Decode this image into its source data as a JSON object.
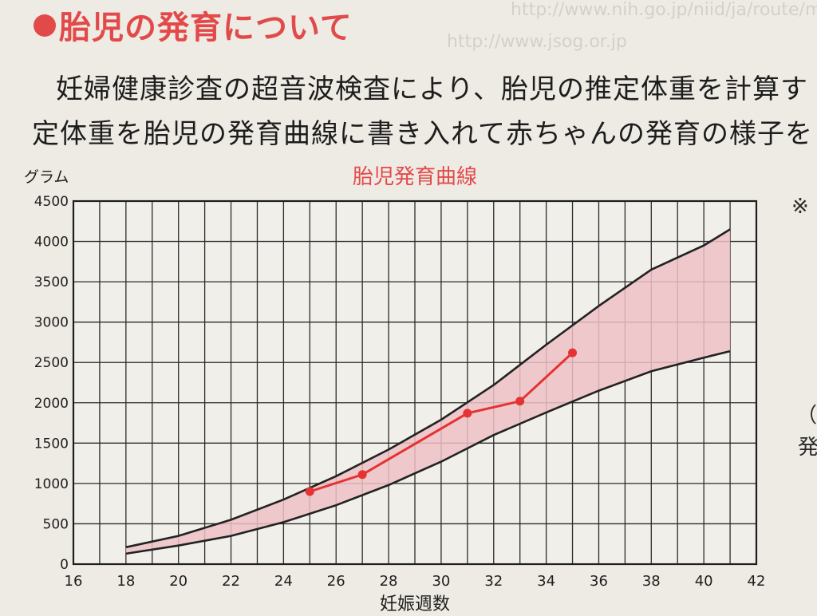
{
  "heading": "胎児の発育について",
  "paragraph": {
    "line1": "妊婦健康診査の超音波検査により、胎児の推定体重を計算す",
    "line2": "定体重を胎児の発育曲線に書き入れて赤ちゃんの発育の様子を"
  },
  "side_text": {
    "asterisk": "※",
    "paren": "（出",
    "hatsu": "発"
  },
  "bleed_text": [
    "http://www.nih.go.jp/niid/ja/route/maternal.html",
    "http://www.jsog.or.jp"
  ],
  "colors": {
    "band_fill": "#efc1c6",
    "band_edge": "#222222",
    "measure_line": "#e53232",
    "title_red": "#e24a4a"
  },
  "chart_data": {
    "type": "line",
    "title": "胎児発育曲線",
    "xlabel": "妊娠週数",
    "ylabel": "グラム",
    "xlim": [
      16,
      42
    ],
    "ylim": [
      0,
      4500
    ],
    "grid": true,
    "x_ticks": [
      16,
      18,
      20,
      22,
      24,
      26,
      28,
      30,
      32,
      34,
      36,
      38,
      40,
      42
    ],
    "y_ticks": [
      0,
      500,
      1000,
      1500,
      2000,
      2500,
      3000,
      3500,
      4000,
      4500
    ],
    "series": [
      {
        "role": "upper-bound",
        "x": [
          18,
          20,
          22,
          24,
          26,
          28,
          30,
          32,
          34,
          36,
          38,
          40,
          41
        ],
        "values": [
          210,
          350,
          550,
          800,
          1090,
          1420,
          1790,
          2220,
          2720,
          3200,
          3650,
          3950,
          4150
        ]
      },
      {
        "role": "lower-bound",
        "x": [
          18,
          20,
          22,
          24,
          26,
          28,
          30,
          32,
          34,
          36,
          38,
          40,
          41
        ],
        "values": [
          130,
          230,
          350,
          520,
          730,
          980,
          1270,
          1600,
          1880,
          2150,
          2390,
          2560,
          2640
        ]
      },
      {
        "role": "measured",
        "x": [
          25,
          27,
          31,
          33,
          35
        ],
        "values": [
          900,
          1110,
          1870,
          2020,
          2620
        ]
      }
    ]
  }
}
